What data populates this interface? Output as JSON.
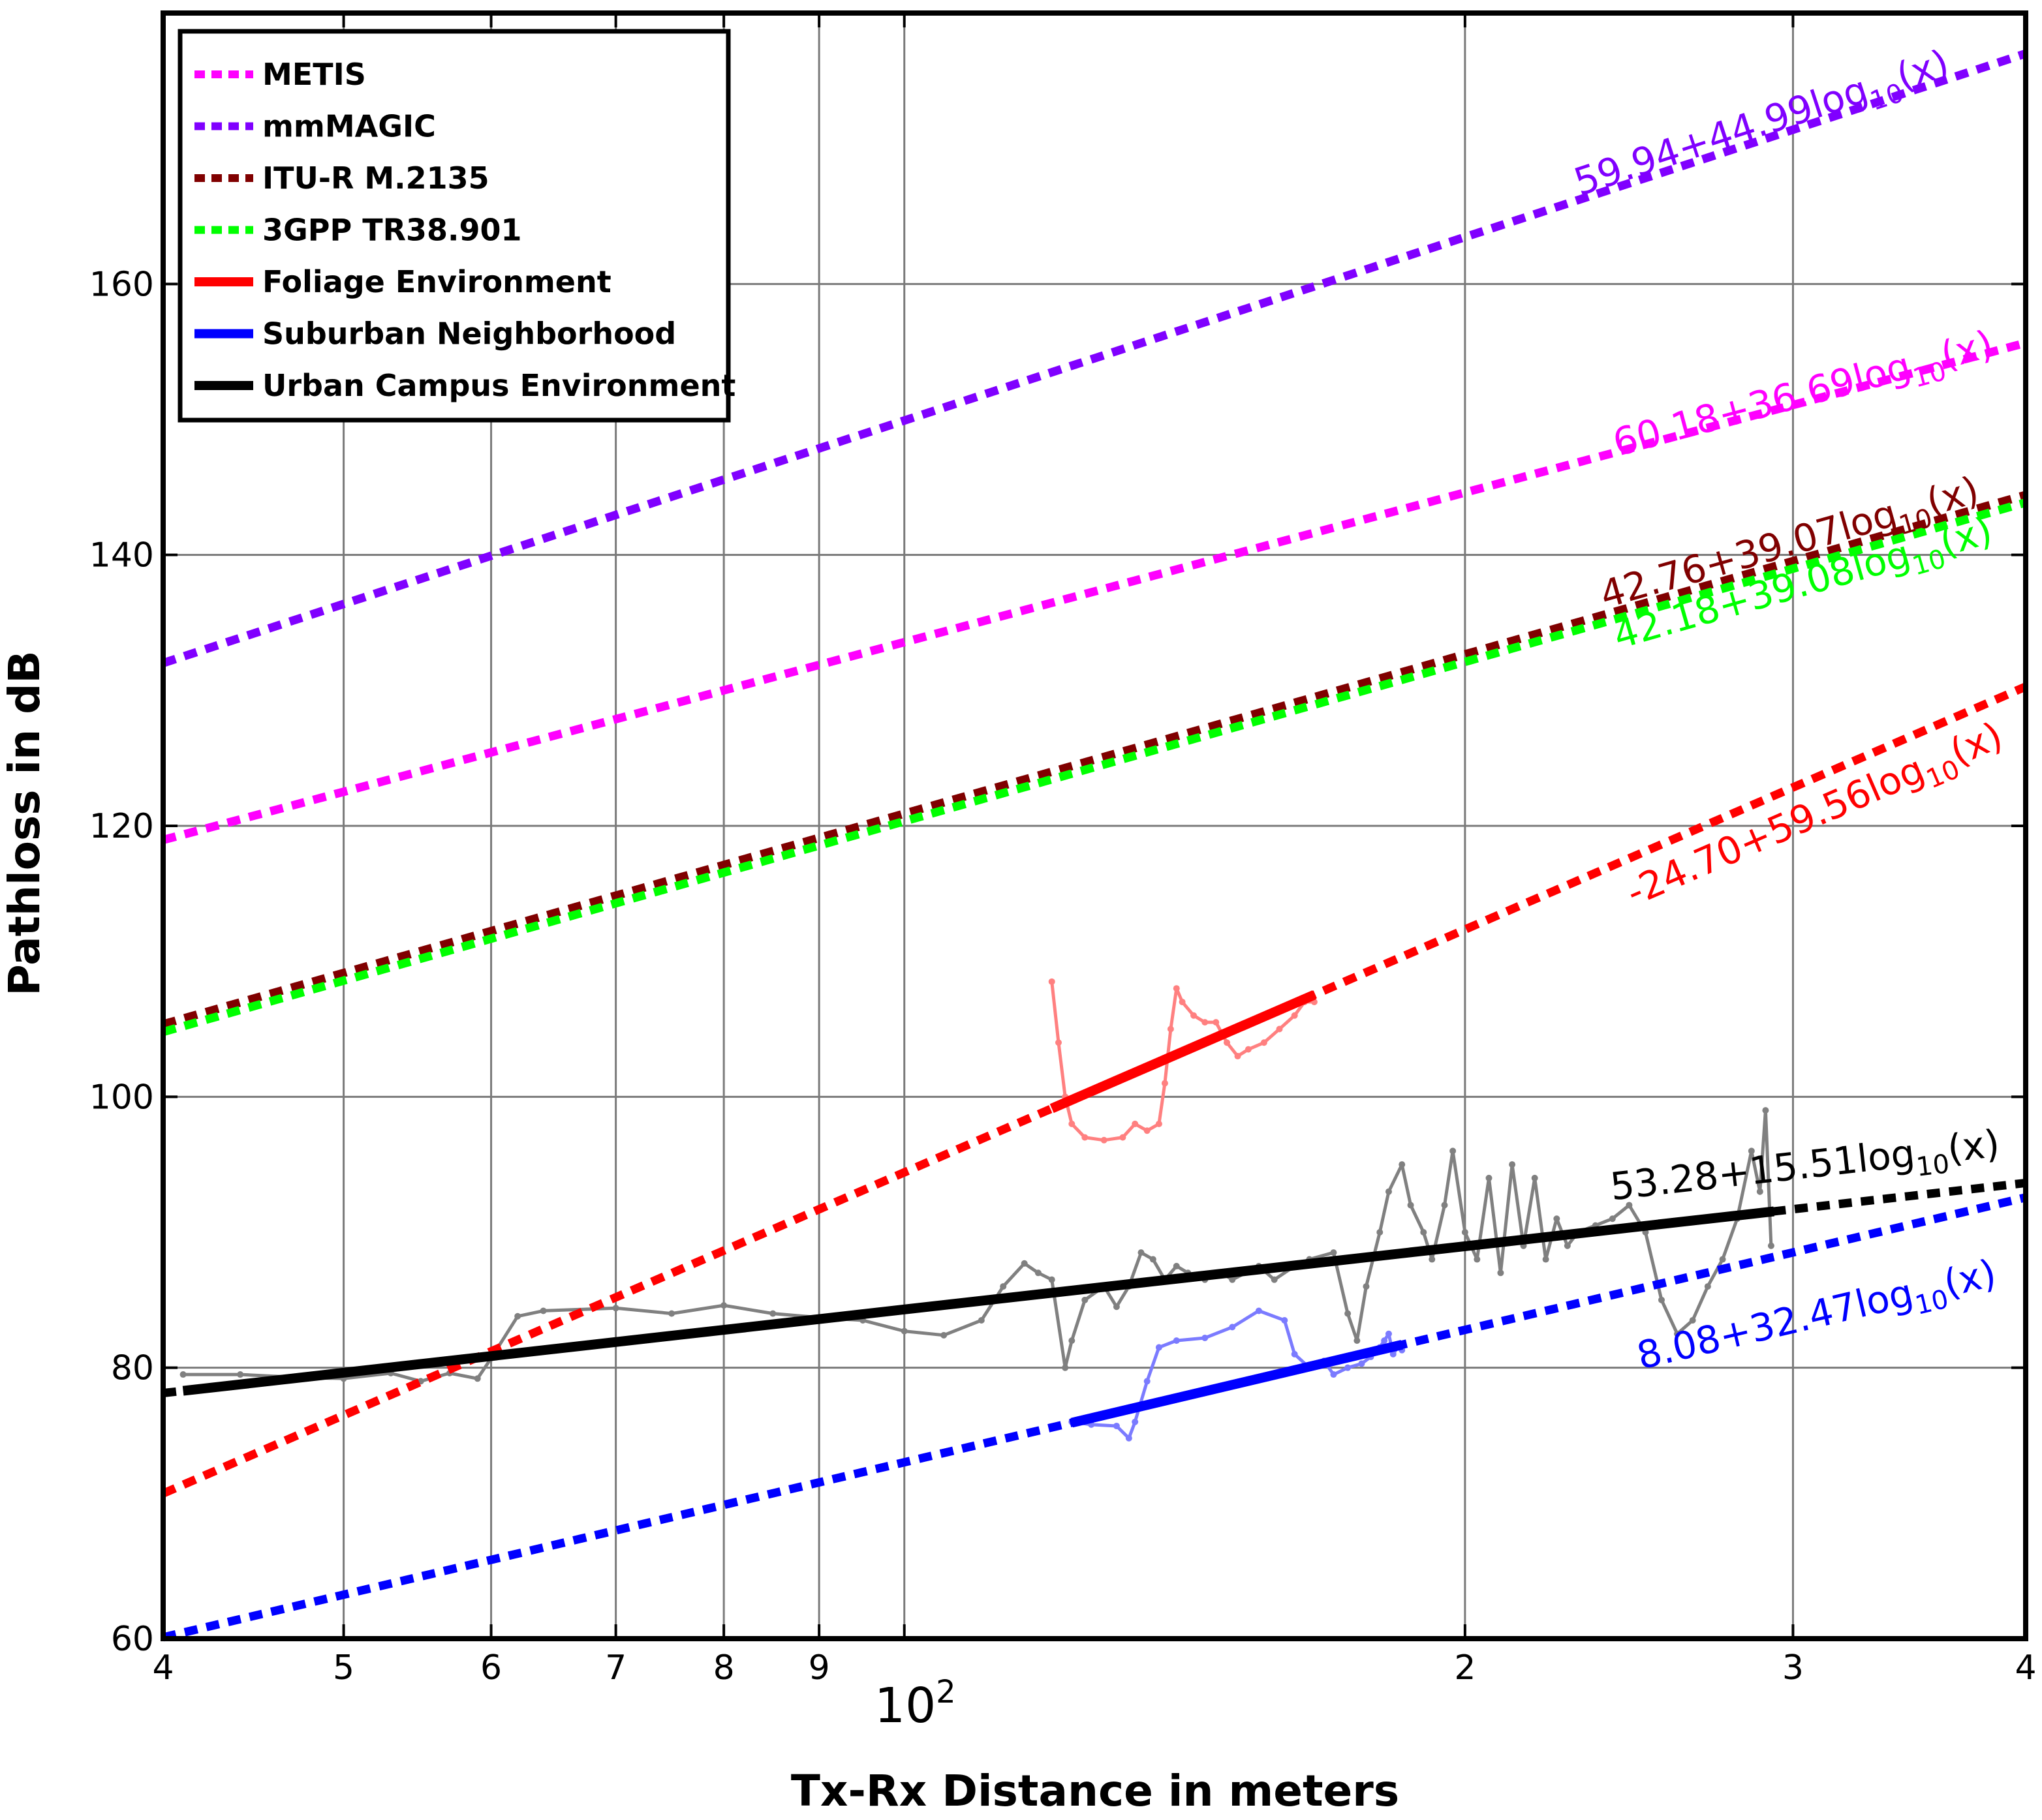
{
  "chart_data": {
    "type": "line",
    "xlabel": "Tx-Rx Distance in meters",
    "ylabel": "Pathloss in dB",
    "xscale": "log",
    "xlim": [
      40,
      400
    ],
    "ylim": [
      60,
      180
    ],
    "grid": true,
    "legend_position": "top-left",
    "x_ticks": [
      40,
      50,
      60,
      70,
      80,
      90,
      100,
      200,
      300,
      400
    ],
    "x_tick_labels": [
      "4",
      "5",
      "6",
      "7",
      "8",
      "9",
      "",
      "2",
      "3",
      "4"
    ],
    "x_decade_label": "10",
    "x_decade_exponent": "2",
    "y_ticks": [
      60,
      80,
      100,
      120,
      140,
      160
    ],
    "y_tick_labels": [
      "60",
      "80",
      "100",
      "120",
      "140",
      "160"
    ],
    "legend": [
      {
        "label": "METIS",
        "color": "#ff00ff",
        "style": "dotted"
      },
      {
        "label": "mmMAGIC",
        "color": "#8000ff",
        "style": "dotted"
      },
      {
        "label": "ITU-R M.2135",
        "color": "#800000",
        "style": "dotted"
      },
      {
        "label": "3GPP TR38.901",
        "color": "#00ff00",
        "style": "dotted"
      },
      {
        "label": "Foliage Environment",
        "color": "#ff0000",
        "style": "solid"
      },
      {
        "label": "Suburban Neighborhood",
        "color": "#0000ff",
        "style": "solid"
      },
      {
        "label": "Urban Campus Environment",
        "color": "#000000",
        "style": "solid"
      }
    ],
    "model_lines": [
      {
        "name": "mmMAGIC",
        "intercept": 59.94,
        "slope": 44.99,
        "color": "#8000ff",
        "x_range": [
          40,
          400
        ],
        "annotation": {
          "base": "59.94+44.99log",
          "sub": "10",
          "tail": "(x)"
        },
        "label_at": {
          "x": 290,
          "y": 171
        }
      },
      {
        "name": "METIS",
        "intercept": 60.18,
        "slope": 36.69,
        "color": "#ff00ff",
        "x_range": [
          40,
          400
        ],
        "annotation": {
          "base": "60.18+36.69log",
          "sub": "10",
          "tail": "(x)"
        },
        "label_at": {
          "x": 305,
          "y": 151
        }
      },
      {
        "name": "ITU-R M.2135",
        "intercept": 42.76,
        "slope": 39.07,
        "color": "#800000",
        "x_range": [
          40,
          400
        ],
        "annotation": {
          "base": "42.76+39.07log",
          "sub": "10",
          "tail": "(x)"
        },
        "label_at": {
          "x": 300,
          "y": 140
        }
      },
      {
        "name": "3GPP TR38.901",
        "intercept": 42.18,
        "slope": 39.08,
        "color": "#00ff00",
        "x_range": [
          40,
          400
        ],
        "annotation": {
          "base": "42.18+39.08log",
          "sub": "10",
          "tail": "(x)"
        },
        "label_at": {
          "x": 305,
          "y": 137
        }
      },
      {
        "name": "Foliage Environment",
        "intercept": -24.7,
        "slope": 59.56,
        "color": "#ff0000",
        "x_range": [
          40,
          400
        ],
        "solid_range": [
          120,
          166
        ],
        "annotation": {
          "base": "-24.70+59.56log",
          "sub": "10",
          "tail": "(x)"
        },
        "label_at": {
          "x": 310,
          "y": 120
        }
      },
      {
        "name": "Suburban Neighborhood",
        "intercept": 8.08,
        "slope": 32.47,
        "color": "#0000ff",
        "x_range": [
          40,
          400
        ],
        "solid_range": [
          123,
          185
        ],
        "annotation": {
          "base": "8.08+32.47log",
          "sub": "10",
          "tail": "(x)"
        },
        "label_at": {
          "x": 310,
          "y": 83
        }
      },
      {
        "name": "Urban Campus Environment",
        "intercept": 53.28,
        "slope": 15.51,
        "color": "#000000",
        "x_range": [
          40,
          400
        ],
        "solid_range": [
          41,
          293
        ],
        "annotation": {
          "base": "53.28+15.51log",
          "sub": "10",
          "tail": "(x)"
        },
        "label_at": {
          "x": 305,
          "y": 94
        }
      }
    ],
    "measured_series": [
      {
        "name": "Foliage measurements",
        "color": "#ff8080",
        "points": [
          [
            120,
            108.5
          ],
          [
            121,
            104
          ],
          [
            122,
            100
          ],
          [
            123,
            98
          ],
          [
            125,
            97
          ],
          [
            128,
            96.8
          ],
          [
            131,
            97
          ],
          [
            133,
            98
          ],
          [
            135,
            97.5
          ],
          [
            137,
            98
          ],
          [
            138,
            101
          ],
          [
            139,
            105
          ],
          [
            140,
            108
          ],
          [
            141,
            107
          ],
          [
            143,
            106
          ],
          [
            145,
            105.5
          ],
          [
            147,
            105.5
          ],
          [
            149,
            104
          ],
          [
            151,
            103
          ],
          [
            153,
            103.5
          ],
          [
            156,
            104
          ],
          [
            159,
            105
          ],
          [
            162,
            106
          ],
          [
            164,
            107
          ],
          [
            166,
            107
          ]
        ]
      },
      {
        "name": "Suburban measurements",
        "color": "#7b7bff",
        "points": [
          [
            123,
            76
          ],
          [
            126,
            75.8
          ],
          [
            130,
            75.7
          ],
          [
            132,
            74.8
          ],
          [
            133,
            76
          ],
          [
            135,
            79
          ],
          [
            137,
            81.5
          ],
          [
            140,
            82
          ],
          [
            145,
            82.2
          ],
          [
            150,
            83
          ],
          [
            155,
            84.2
          ],
          [
            160,
            83.5
          ],
          [
            162,
            81
          ],
          [
            165,
            80
          ],
          [
            168,
            80.5
          ],
          [
            170,
            79.5
          ],
          [
            173,
            80
          ],
          [
            176,
            80.3
          ],
          [
            178,
            80.8
          ],
          [
            180,
            81.5
          ],
          [
            181,
            82
          ],
          [
            182,
            82.5
          ],
          [
            183,
            81
          ],
          [
            184,
            81.5
          ],
          [
            185,
            81.3
          ]
        ]
      },
      {
        "name": "Urban campus measurements",
        "color": "#808080",
        "points": [
          [
            41,
            79.5
          ],
          [
            44,
            79.5
          ],
          [
            47,
            79.3
          ],
          [
            50,
            79.2
          ],
          [
            53,
            79.6
          ],
          [
            55,
            79
          ],
          [
            57,
            79.6
          ],
          [
            59,
            79.2
          ],
          [
            60,
            80.7
          ],
          [
            62,
            83.8
          ],
          [
            64,
            84.2
          ],
          [
            70,
            84.4
          ],
          [
            75,
            84
          ],
          [
            80,
            84.6
          ],
          [
            85,
            84
          ],
          [
            90,
            83.7
          ],
          [
            95,
            83.5
          ],
          [
            100,
            82.7
          ],
          [
            105,
            82.4
          ],
          [
            110,
            83.5
          ],
          [
            113,
            86
          ],
          [
            116,
            87.7
          ],
          [
            118,
            87
          ],
          [
            120,
            86.5
          ],
          [
            122,
            80
          ],
          [
            123,
            82
          ],
          [
            125,
            85
          ],
          [
            128,
            86
          ],
          [
            130,
            84.5
          ],
          [
            132,
            86
          ],
          [
            134,
            88.5
          ],
          [
            136,
            88
          ],
          [
            138,
            86.5
          ],
          [
            140,
            87.5
          ],
          [
            142,
            87
          ],
          [
            145,
            86.5
          ],
          [
            148,
            87
          ],
          [
            150,
            86.5
          ],
          [
            155,
            87.5
          ],
          [
            158,
            86.5
          ],
          [
            162,
            87.5
          ],
          [
            165,
            88
          ],
          [
            170,
            88.5
          ],
          [
            173,
            84
          ],
          [
            175,
            82
          ],
          [
            177,
            86
          ],
          [
            180,
            90
          ],
          [
            182,
            93
          ],
          [
            185,
            95
          ],
          [
            187,
            92
          ],
          [
            190,
            90
          ],
          [
            192,
            88
          ],
          [
            195,
            92
          ],
          [
            197,
            96
          ],
          [
            200,
            90
          ],
          [
            203,
            88
          ],
          [
            206,
            94
          ],
          [
            209,
            87
          ],
          [
            212,
            95
          ],
          [
            215,
            89
          ],
          [
            218,
            94
          ],
          [
            221,
            88
          ],
          [
            224,
            91
          ],
          [
            227,
            89
          ],
          [
            230,
            90
          ],
          [
            235,
            90.5
          ],
          [
            240,
            91
          ],
          [
            245,
            92
          ],
          [
            250,
            90
          ],
          [
            255,
            85
          ],
          [
            260,
            82.5
          ],
          [
            265,
            83.5
          ],
          [
            270,
            86
          ],
          [
            275,
            88
          ],
          [
            280,
            91
          ],
          [
            285,
            96
          ],
          [
            288,
            93
          ],
          [
            290,
            99
          ],
          [
            292,
            89
          ]
        ]
      }
    ]
  }
}
